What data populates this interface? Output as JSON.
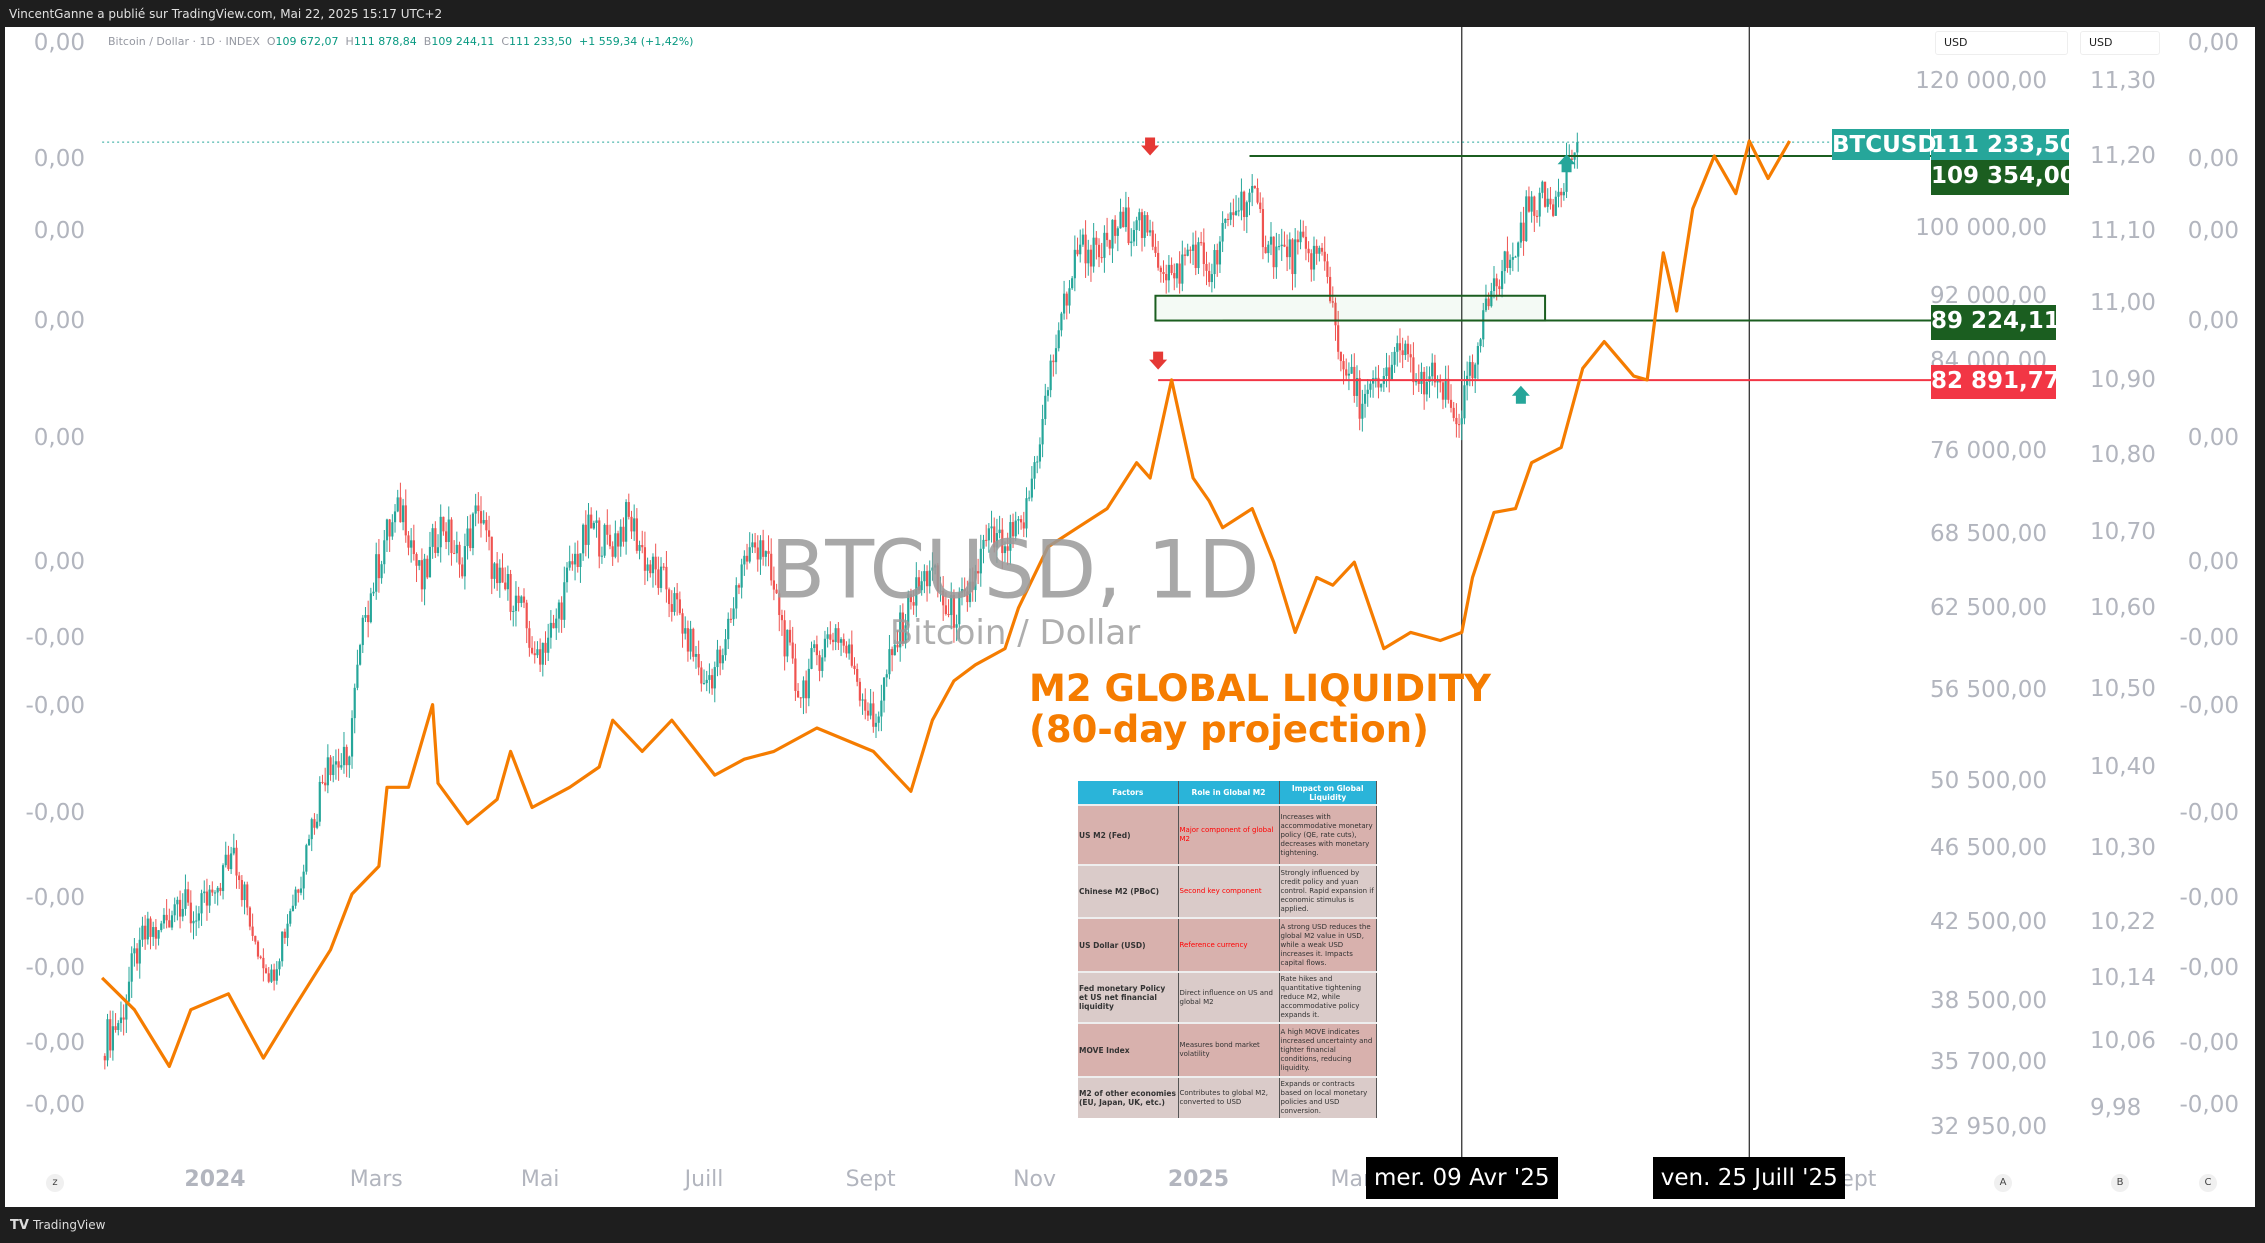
{
  "header": {
    "published": "VincentGanne a publié sur TradingView.com, Mai 22, 2025 15:17 UTC+2"
  },
  "legend": {
    "symbol": "Bitcoin / Dollar · 1D · INDEX",
    "o_label": "O",
    "o": "109 672,07",
    "h_label": "H",
    "h": "111 878,84",
    "b_label": "B",
    "b": "109 244,11",
    "c_label": "C",
    "c": "111 233,50",
    "change": "+1 559,34 (+1,42%)"
  },
  "watermark": {
    "title": "BTCUSD, 1D",
    "subtitle": "Bitcoin / Dollar"
  },
  "annotation": {
    "line1": "M2 GLOBAL LIQUIDITY",
    "line2": "(80-day projection)"
  },
  "colors": {
    "up": "#26a69a",
    "down": "#ef5350",
    "m2": "#f57c00",
    "support": "#1b5e20",
    "resistance": "#f23645",
    "last": "#26a69a"
  },
  "axis_units": {
    "a": "USD",
    "b": "USD"
  },
  "scale_buttons": {
    "z": "z",
    "a": "A",
    "b": "B",
    "c": "C"
  },
  "footer": {
    "logo": "TradingView"
  },
  "table": {
    "headers": [
      "Factors",
      "Role in Global M2",
      "Impact on Global Liquidity"
    ],
    "rows": [
      {
        "factor": "US M2 (Fed)",
        "role": "Major component of global M2",
        "role_red": true,
        "impact": "Increases with accommodative monetary policy (QE, rate cuts), decreases with monetary tightening."
      },
      {
        "factor": "Chinese M2 (PBoC)",
        "role": "Second key component",
        "role_red": true,
        "impact": "Strongly influenced by credit policy and yuan control. Rapid expansion if economic stimulus is applied."
      },
      {
        "factor": "US Dollar (USD)",
        "role": "Reference currency",
        "role_red": true,
        "impact": "A strong USD reduces the global M2 value in USD, while a weak USD increases it. Impacts capital flows."
      },
      {
        "factor": "Fed  monetary Policy et US net financial liquidity",
        "role": "Direct influence on US and global M2",
        "role_red": false,
        "impact": "Rate hikes and quantitative tightening reduce M2, while accommodative policy expands it."
      },
      {
        "factor": "MOVE Index",
        "role": "Measures bond market volatility",
        "role_red": false,
        "impact": "A high MOVE indicates increased uncertainty and tighter financial conditions, reducing liquidity."
      },
      {
        "factor": "M2 of other economies (EU, Japan, UK, etc.)",
        "role": "Contributes to global M2, converted to USD",
        "role_red": false,
        "impact": "Expands or contracts based on local monetary policies and USD conversion."
      }
    ]
  },
  "chart_data": {
    "type": "candlestick+line",
    "price_scale": "log",
    "x_ticks": [
      {
        "label": "2024",
        "date": "2024-01-01",
        "bold": true
      },
      {
        "label": "Mars",
        "date": "2024-03-01"
      },
      {
        "label": "Mai",
        "date": "2024-05-01"
      },
      {
        "label": "Juill",
        "date": "2024-07-01"
      },
      {
        "label": "Sept",
        "date": "2024-09-01"
      },
      {
        "label": "Nov",
        "date": "2024-11-01"
      },
      {
        "label": "2025",
        "date": "2025-01-01",
        "bold": true
      },
      {
        "label": "Mars",
        "date": "2025-03-01"
      },
      {
        "label": "Sept",
        "date": "2025-09-01"
      }
    ],
    "axis_a_ticks": [
      "120 000,00",
      "100 000,00",
      "92 000,00",
      "84 000,00",
      "76 000,00",
      "68 500,00",
      "62 500,00",
      "56 500,00",
      "50 500,00",
      "46 500,00",
      "42 500,00",
      "38 500,00",
      "35 700,00",
      "32 950,00"
    ],
    "axis_b_ticks": [
      "11,30",
      "11,20",
      "11,10",
      "11,00",
      "10,90",
      "10,80",
      "10,70",
      "10,60",
      "10,50",
      "10,40",
      "10,30",
      "10,22",
      "10,14",
      "10,06",
      "9,98"
    ],
    "axis_left_ticks": [
      "0,00",
      "0,00",
      "0,00",
      "0,00",
      "0,00",
      "0,00",
      "-0,00",
      "-0,00",
      "-0,00",
      "-0,00",
      "-0,00",
      "-0,00",
      "-0,00"
    ],
    "axis_c_ticks": [
      "0,00",
      "0,00",
      "0,00",
      "0,00",
      "0,00",
      "0,00",
      "-0,00",
      "-0,00",
      "-0,00",
      "-0,00",
      "-0,00",
      "-0,00",
      "-0,00"
    ],
    "btc": {
      "name": "BTCUSD",
      "dates": [
        "2023-11-20",
        "2023-11-27",
        "2023-12-04",
        "2023-12-11",
        "2023-12-18",
        "2023-12-25",
        "2024-01-01",
        "2024-01-08",
        "2024-01-15",
        "2024-01-22",
        "2024-01-29",
        "2024-02-05",
        "2024-02-12",
        "2024-02-19",
        "2024-02-26",
        "2024-03-04",
        "2024-03-11",
        "2024-03-18",
        "2024-03-25",
        "2024-04-01",
        "2024-04-08",
        "2024-04-15",
        "2024-04-22",
        "2024-04-29",
        "2024-05-06",
        "2024-05-13",
        "2024-05-20",
        "2024-05-27",
        "2024-06-03",
        "2024-06-10",
        "2024-06-17",
        "2024-06-24",
        "2024-07-01",
        "2024-07-08",
        "2024-07-15",
        "2024-07-22",
        "2024-07-29",
        "2024-08-05",
        "2024-08-12",
        "2024-08-19",
        "2024-08-26",
        "2024-09-02",
        "2024-09-09",
        "2024-09-16",
        "2024-09-23",
        "2024-09-30",
        "2024-10-07",
        "2024-10-14",
        "2024-10-21",
        "2024-10-28",
        "2024-11-04",
        "2024-11-11",
        "2024-11-18",
        "2024-11-25",
        "2024-12-02",
        "2024-12-09",
        "2024-12-16",
        "2024-12-23",
        "2024-12-30",
        "2025-01-06",
        "2025-01-13",
        "2025-01-20",
        "2025-01-27",
        "2025-02-03",
        "2025-02-10",
        "2025-02-17",
        "2025-02-24",
        "2025-03-03",
        "2025-03-10",
        "2025-03-17",
        "2025-03-24",
        "2025-03-31",
        "2025-04-07",
        "2025-04-14",
        "2025-04-21",
        "2025-04-28",
        "2025-05-05",
        "2025-05-12",
        "2025-05-19",
        "2025-05-22"
      ],
      "close": [
        36500,
        37700,
        41500,
        42000,
        43600,
        42500,
        44000,
        46500,
        41700,
        40000,
        43000,
        47000,
        52000,
        51500,
        62000,
        68000,
        71000,
        64000,
        70000,
        66000,
        70500,
        64500,
        63500,
        59000,
        61000,
        66000,
        69000,
        67500,
        70000,
        66000,
        64000,
        61000,
        57000,
        59000,
        66000,
        68000,
        62000,
        56000,
        59000,
        61000,
        58000,
        54000,
        59000,
        63000,
        65500,
        62000,
        63000,
        68000,
        67500,
        69000,
        79000,
        90000,
        98000,
        96500,
        100000,
        101000,
        97000,
        94000,
        98000,
        94500,
        102000,
        104500,
        98000,
        96500,
        97500,
        96000,
        84000,
        80500,
        82500,
        86000,
        82500,
        83000,
        78500,
        84500,
        94000,
        96500,
        104000,
        103000,
        109000,
        111233.5
      ]
    },
    "m2": {
      "dates": [
        "2023-11-20",
        "2023-12-02",
        "2023-12-15",
        "2023-12-23",
        "2024-01-06",
        "2024-01-19",
        "2024-01-30",
        "2024-02-13",
        "2024-02-21",
        "2024-03-02",
        "2024-03-05",
        "2024-03-13",
        "2024-03-22",
        "2024-03-24",
        "2024-04-04",
        "2024-04-15",
        "2024-04-20",
        "2024-04-28",
        "2024-05-12",
        "2024-05-23",
        "2024-05-28",
        "2024-06-08",
        "2024-06-19",
        "2024-07-05",
        "2024-07-16",
        "2024-07-27",
        "2024-08-12",
        "2024-09-02",
        "2024-09-16",
        "2024-09-24",
        "2024-10-02",
        "2024-10-10",
        "2024-10-21",
        "2024-10-26",
        "2024-11-06",
        "2024-11-17",
        "2024-11-28",
        "2024-12-09",
        "2024-12-14",
        "2024-12-22",
        "2024-12-30",
        "2025-01-05",
        "2025-01-10",
        "2025-01-21",
        "2025-01-29",
        "2025-02-06",
        "2025-02-14",
        "2025-02-20",
        "2025-02-28",
        "2025-03-11",
        "2025-03-21",
        "2025-04-01",
        "2025-04-09",
        "2025-04-13",
        "2025-04-21",
        "2025-04-29",
        "2025-05-05",
        "2025-05-16",
        "2025-05-24",
        "2025-06-01",
        "2025-06-12",
        "2025-06-17",
        "2025-06-23",
        "2025-06-28",
        "2025-07-04",
        "2025-07-12",
        "2025-07-20",
        "2025-07-25",
        "2025-08-01",
        "2025-08-09"
      ],
      "values": [
        10.14,
        10.1,
        10.03,
        10.1,
        10.12,
        10.04,
        10.1,
        10.18,
        10.25,
        10.28,
        10.375,
        10.375,
        10.48,
        10.38,
        10.33,
        10.36,
        10.42,
        10.35,
        10.375,
        10.4,
        10.46,
        10.42,
        10.46,
        10.39,
        10.41,
        10.42,
        10.45,
        10.42,
        10.37,
        10.46,
        10.51,
        10.53,
        10.55,
        10.6,
        10.68,
        10.705,
        10.73,
        10.79,
        10.77,
        10.9,
        10.77,
        10.74,
        10.705,
        10.73,
        10.66,
        10.57,
        10.64,
        10.63,
        10.66,
        10.55,
        10.57,
        10.56,
        10.57,
        10.64,
        10.725,
        10.73,
        10.79,
        10.81,
        10.915,
        10.95,
        10.905,
        10.9,
        11.07,
        10.99,
        11.13,
        11.2,
        11.15,
        11.22,
        11.17,
        11.22
      ]
    },
    "levels": [
      {
        "name": "last",
        "price": 111233.5,
        "label": "111 233,50",
        "tag": "BTCUSD",
        "from": "2023-11-20",
        "style": "dotted"
      },
      {
        "name": "resistance-high",
        "price": 109354.0,
        "label": "109 354,00",
        "from": "2025-01-20"
      },
      {
        "name": "support",
        "price": 89224.11,
        "label": "89 224,11",
        "from": "2025-01-10"
      },
      {
        "name": "previous-peak",
        "price": 82891.77,
        "label": "82 891,77",
        "from": "2024-12-17"
      }
    ],
    "zone": {
      "from": "2024-12-16",
      "to": "2025-05-10",
      "top": 92000,
      "bottom": 89224.11
    },
    "markers": [
      {
        "type": "down",
        "date": "2024-12-14",
        "price": 110500
      },
      {
        "type": "down",
        "date": "2024-12-17",
        "price": 84800
      },
      {
        "type": "up",
        "date": "2025-05-18",
        "price": 108500
      },
      {
        "type": "up",
        "date": "2025-05-01",
        "price": 81500
      }
    ],
    "crosshairs": [
      {
        "date": "2025-04-09",
        "label": "mer. 09 Avr '25"
      },
      {
        "date": "2025-07-25",
        "label": "ven. 25 Juill '25"
      }
    ]
  }
}
